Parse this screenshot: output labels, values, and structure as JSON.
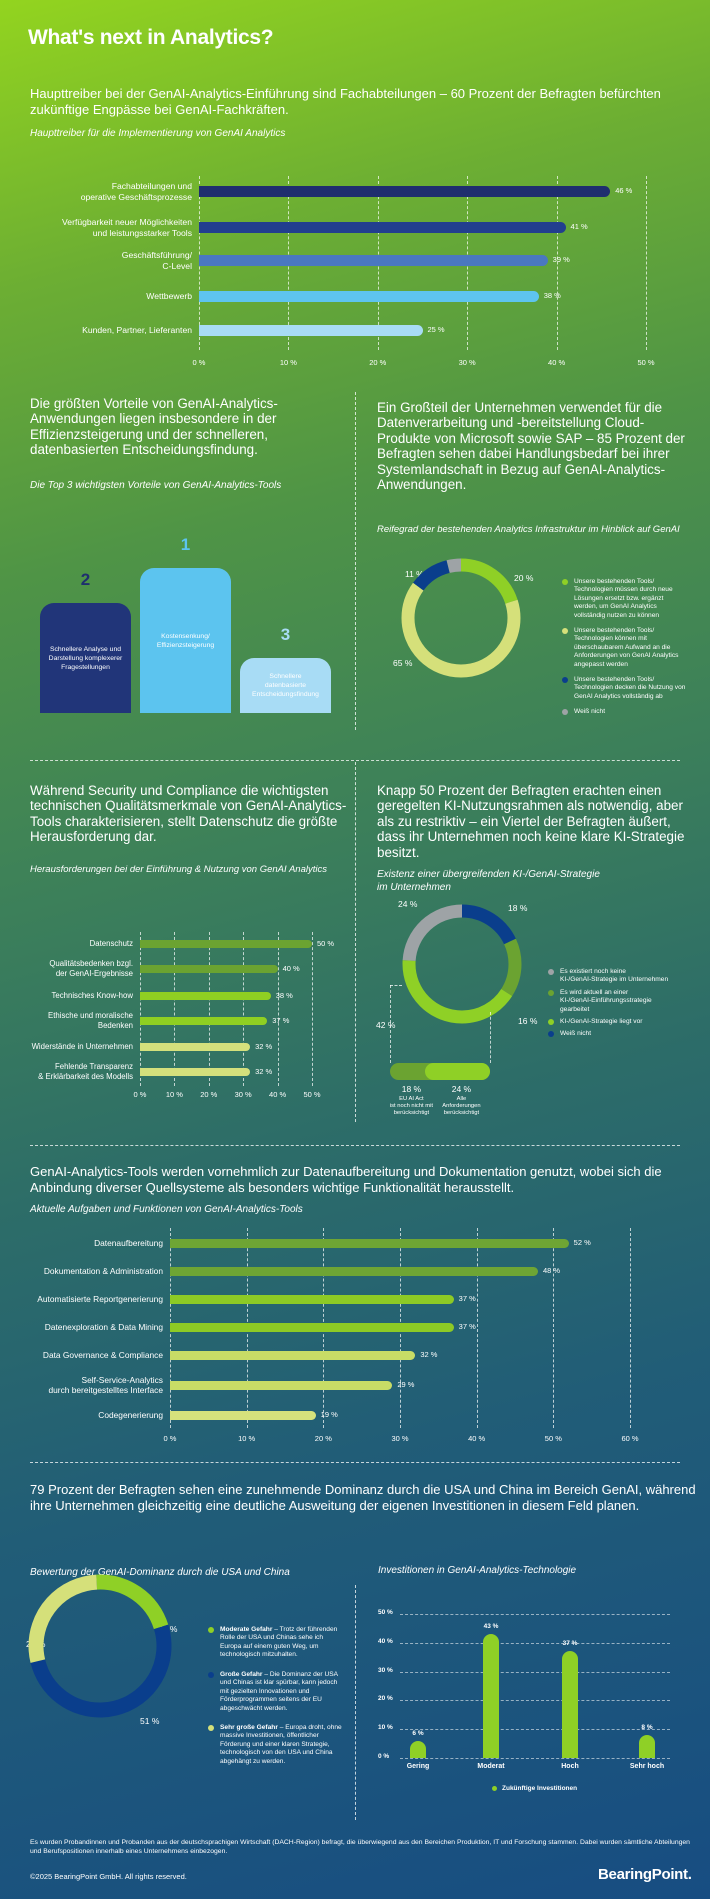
{
  "title": "What's next in Analytics?",
  "s1": {
    "headline": "Haupttreiber bei der GenAI-Analytics-Einführung sind Fachabteilungen – 60 Prozent der Befragten befürchten zukünftige Engpässe bei GenAI-Fachkräften."
  },
  "s2l": {
    "headline": "Die größten Vorteile von GenAI-Analytics-Anwendungen liegen insbesondere in der Effizienzsteigerung und der schnelleren, datenbasierten Entscheidungsfindung."
  },
  "s2r": {
    "headline": "Ein Großteil der Unternehmen verwendet für die Datenverarbeitung und -bereitstellung Cloud-Produkte von Microsoft sowie SAP – 85 Prozent der Befragten sehen dabei Handlungsbedarf bei ihrer Systemlandschaft in Bezug auf GenAI-Analytics-Anwendungen."
  },
  "s3l": {
    "headline": "Während Security und Compliance die wichtigsten technischen Qualitätsmerkmale von GenAI-Analytics-Tools charakterisieren, stellt Datenschutz die größte Herausforderung dar."
  },
  "s3r": {
    "headline": "Knapp 50 Prozent der Befragten erachten einen geregelten KI-Nutzungsrahmen als notwendig, aber als zu restriktiv – ein Viertel der Befragten äußert, dass ihr Unternehmen noch keine klare KI-Strategie besitzt."
  },
  "s4": {
    "headline": "GenAI-Analytics-Tools werden vornehmlich zur Datenaufbereitung und Dokumentation genutzt, wobei sich die Anbindung diverser Quellsysteme als besonders wichtige Funktionalität herausstellt."
  },
  "s5": {
    "headline": "79 Prozent der Befragten sehen eine zunehmende Dominanz durch die USA und China im Bereich GenAI, während ihre Unternehmen gleichzeitig eine deutliche Ausweitung der eigenen Investitionen in diesem Feld planen."
  },
  "footer": {
    "note": "Es wurden Probandinnen und Probanden aus der deutschsprachigen Wirtschaft (DACH-Region) befragt, die überwiegend aus den Bereichen Produktion, IT und Forschung stammen. Dabei wurden sämtliche Abteilungen und Berufspositionen innerhalb eines Unternehmens einbezogen.",
    "copyright": "©2025 BearingPoint GmbH. All rights reserved.",
    "logo": "BearingPoint."
  },
  "chart_data": [
    {
      "type": "bar",
      "orientation": "horizontal",
      "title": "Haupttreiber für die Implementierung von GenAI Analytics",
      "categories": [
        "Fachabteilungen und\noperative Geschäftsprozesse",
        "Verfügbarkeit neuer Möglichkeiten\nund leistungsstarker Tools",
        "Geschäftsführung/\nC-Level",
        "Wettbewerb",
        "Kunden, Partner, Lieferanten"
      ],
      "values": [
        46,
        41,
        39,
        38,
        25
      ],
      "value_labels": [
        "46 %",
        "41 %",
        "39 %",
        "38 %",
        "25 %"
      ],
      "colors": [
        "#1f2e6e",
        "#223f8e",
        "#4a78c0",
        "#5ec4ef",
        "#a8dcf5"
      ],
      "xticks": [
        "0 %",
        "10 %",
        "20 %",
        "30 %",
        "40 %",
        "50 %"
      ],
      "xlim": [
        0,
        50
      ],
      "grid": true
    },
    {
      "type": "bar",
      "title": "Die Top 3 wichtigsten Vorteile von GenAI-Analytics-Tools",
      "items": [
        {
          "rank": "2",
          "label": "Schnellere Analyse und\nDarstellung komplexerer\nFragestellungen",
          "color": "#213579",
          "text_color": "#ffffff",
          "rank_color": "#1e2f6e"
        },
        {
          "rank": "1",
          "label": "Kostensenkung/\nEffizienzsteigerung",
          "color": "#5cc4ef",
          "text_color": "#ffffff",
          "rank_color": "#5cc4ef"
        },
        {
          "rank": "3",
          "label": "Schnellere\ndatenbasierte\nEntscheidungsfindung",
          "color": "#a8dcf5",
          "text_color": "#ffffff",
          "rank_color": "#a8dcf5"
        }
      ]
    },
    {
      "type": "pie",
      "style": "donut",
      "title": "Reifegrad der bestehenden Analytics Infrastruktur im Hinblick auf GenAI",
      "slices": [
        {
          "value": 20,
          "label": "20 %",
          "color": "#8fd026",
          "legend": "Unsere bestehenden Tools/\nTechnologien müssen durch neue\nLösungen ersetzt bzw. ergänzt\nwerden, um GenAI Analytics\nvollständig nutzen zu können"
        },
        {
          "value": 65,
          "label": "65 %",
          "color": "#d5e07a",
          "legend": "Unsere bestehenden Tools/\nTechnologien können mit\nüberschaubarem Aufwand an die\nAnforderungen von GenAI Analytics\nangepasst werden"
        },
        {
          "value": 11,
          "label": "11 %",
          "color": "#0a3e8c",
          "legend": "Unsere bestehenden Tools/\nTechnologien decken die Nutzung von\nGenAI Analytics vollständig ab"
        },
        {
          "value": 4,
          "label": "4 %",
          "color": "#9ea3a6",
          "legend": "Weiß nicht"
        }
      ],
      "legend_position": "right"
    },
    {
      "type": "bar",
      "orientation": "horizontal",
      "title": "Herausforderungen bei der Einführung & Nutzung von GenAI Analytics",
      "categories": [
        "Datenschutz",
        "Qualitätsbedenken bzgl.\nder GenAI-Ergebnisse",
        "Technisches Know-how",
        "Ethische und moralische\nBedenken",
        "Widerstände in Unternehmen",
        "Fehlende Transparenz\n& Erklärbarkeit des Modells"
      ],
      "values": [
        50,
        40,
        38,
        37,
        32,
        32
      ],
      "value_labels": [
        "50 %",
        "40 %",
        "38 %",
        "37 %",
        "32 %",
        "32 %"
      ],
      "colors": [
        "#6ba331",
        "#6ba331",
        "#8fcf22",
        "#8fcf22",
        "#d4e07c",
        "#d4e07c"
      ],
      "xticks": [
        "0 %",
        "10 %",
        "20 %",
        "30 %",
        "40 %",
        "50 %"
      ],
      "xlim": [
        0,
        50
      ],
      "grid": true
    },
    {
      "type": "pie",
      "style": "donut",
      "title": "Existenz einer übergreifenden KI-/GenAI-Strategie\nim Unternehmen",
      "slices": [
        {
          "value": 18,
          "label": "18 %",
          "color": "#0a3e8c",
          "legend": "Weiß nicht"
        },
        {
          "value": 16,
          "label": "16 %",
          "color": "#6ba331",
          "legend": "Es wird aktuell an einer\nKI-/GenAI-Einführungsstrategie\ngearbeitet"
        },
        {
          "value": 42,
          "label": "42 %",
          "color": "#8fd026",
          "legend": "KI-/GenAI-Strategie liegt vor"
        },
        {
          "value": 24,
          "label": "24 %",
          "color": "#9ea3a6",
          "legend": "Es existiert noch keine\nKI-/GenAI-Strategie im Unternehmen"
        }
      ],
      "legend_order": [
        3,
        1,
        2,
        0
      ],
      "breakdown": [
        {
          "value": 18,
          "label": "18 %",
          "text": "EU AI Act\nist noch nicht mit\nberücksichtigt",
          "color": "#6ba331"
        },
        {
          "value": 24,
          "label": "24 %",
          "text": "Alle\nAnforderungen\nberücksichtigt",
          "color": "#8fd026"
        }
      ]
    },
    {
      "type": "bar",
      "orientation": "horizontal",
      "title": "Aktuelle Aufgaben und Funktionen von GenAI-Analytics-Tools",
      "categories": [
        "Datenaufbereitung",
        "Dokumentation & Administration",
        "Automatisierte Reportgenerierung",
        "Datenexploration & Data Mining",
        "Data Governance & Compliance",
        "Self-Service-Analytics\ndurch bereitgestelltes Interface",
        "Codegenerierung"
      ],
      "values": [
        52,
        48,
        37,
        37,
        32,
        29,
        19
      ],
      "value_labels": [
        "52 %",
        "48 %",
        "37 %",
        "37 %",
        "32 %",
        "29 %",
        "19 %"
      ],
      "colors": [
        "#6ea534",
        "#6ea534",
        "#8dca25",
        "#8dca25",
        "#c8dc66",
        "#c8dc66",
        "#d5e27c"
      ],
      "xticks": [
        "0 %",
        "10 %",
        "20 %",
        "30 %",
        "40 %",
        "50 %",
        "60 %"
      ],
      "xlim": [
        0,
        60
      ],
      "grid": true
    },
    {
      "type": "pie",
      "style": "donut",
      "title": "Bewertung der GenAI-Dominanz durch die USA und China",
      "slices": [
        {
          "value": 21,
          "label": "21 %",
          "color": "#8fd026",
          "legend_title": "Moderate Gefahr",
          "legend": " – Trotz der führenden Rolle der USA und Chinas sehe ich Europa auf einem guten Weg, um technologisch mitzuhalten."
        },
        {
          "value": 51,
          "label": "51 %",
          "color": "#0a3e8c",
          "legend_title": "Große Gefahr",
          "legend": " – Die Dominanz der USA und Chinas ist klar spürbar, kann jedoch mit gezielten Innovationen und Förderprogrammen seitens der EU abgeschwächt werden."
        },
        {
          "value": 28,
          "label": "28 %",
          "color": "#d5e07a",
          "legend_title": "Sehr große Gefahr",
          "legend": " – Europa droht, ohne massive Investitionen, öffentlicher Förderung und einer klaren Strategie, technologisch von den USA und China abgehängt zu werden."
        }
      ]
    },
    {
      "type": "bar",
      "orientation": "vertical",
      "title": "Investitionen in GenAI-Analytics-Technologie",
      "categories": [
        "Gering",
        "Moderat",
        "Hoch",
        "Sehr hoch"
      ],
      "values": [
        6,
        43,
        37,
        8
      ],
      "value_labels": [
        "6 %",
        "43 %",
        "37 %",
        "8 %"
      ],
      "yticks": [
        "0 %",
        "10 %",
        "20 %",
        "30 %",
        "40 %",
        "50 %"
      ],
      "ylim": [
        0,
        50
      ],
      "grid": true,
      "color": "#8fd026",
      "series": [
        {
          "name": "Zukünftige Investitionen"
        }
      ],
      "legend_position": "bottom"
    }
  ]
}
